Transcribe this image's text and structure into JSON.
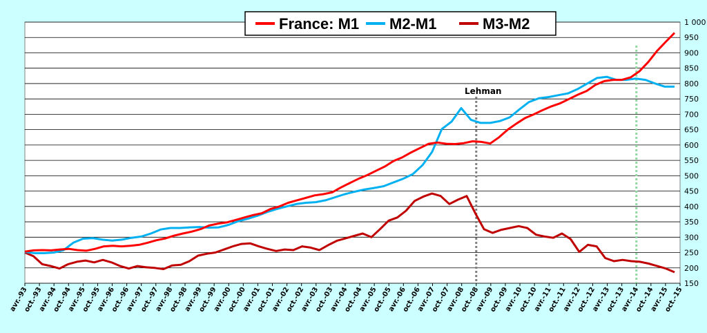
{
  "chart_data": {
    "type": "line",
    "title": "",
    "xlabel": "",
    "ylabel": "",
    "ylim": [
      150,
      1000
    ],
    "y_ticks": [
      150,
      200,
      250,
      300,
      350,
      400,
      450,
      500,
      550,
      600,
      650,
      700,
      750,
      800,
      850,
      900,
      950,
      1000
    ],
    "y_tick_labels": [
      "150",
      "200",
      "250",
      "300",
      "350",
      "400",
      "450",
      "500",
      "550",
      "600",
      "650",
      "700",
      "750",
      "800",
      "850",
      "900",
      "950",
      "1 000"
    ],
    "grid": true,
    "legend_position": "top-center",
    "x_start": "avr.-93",
    "x_end": "oct.-15",
    "x_tick_labels": [
      "avr.-93",
      "oct.-93",
      "avr.-94",
      "oct.-94",
      "avr.-95",
      "oct.-95",
      "avr.-96",
      "oct.-96",
      "avr.-97",
      "oct.-97",
      "avr.-98",
      "oct.-98",
      "avr.-99",
      "oct.-99",
      "avr.-00",
      "oct.-00",
      "avr.-01",
      "oct.-01",
      "avr.-02",
      "oct.-02",
      "avr.-03",
      "oct.-03",
      "avr.-04",
      "oct.-04",
      "avr.-05",
      "oct.-05",
      "avr.-06",
      "oct.-06",
      "avr.-07",
      "oct.-07",
      "avr.-08",
      "oct.-08",
      "avr.-09",
      "oct.-09",
      "avr.-10",
      "oct.-10",
      "avr.-11",
      "oct.-11",
      "avr.-12",
      "oct.-12",
      "avr.-13",
      "oct.-13",
      "avr.-14",
      "oct.-14",
      "avr.-15",
      "oct.-15"
    ],
    "series": [
      {
        "name": "France: M1",
        "color": "#ff0000",
        "values": [
          253,
          257,
          258,
          257,
          260,
          262,
          258,
          256,
          262,
          270,
          272,
          270,
          272,
          275,
          282,
          290,
          296,
          305,
          312,
          318,
          326,
          338,
          344,
          348,
          356,
          364,
          372,
          378,
          392,
          400,
          412,
          420,
          428,
          436,
          440,
          446,
          462,
          476,
          490,
          502,
          516,
          530,
          548,
          560,
          576,
          590,
          604,
          608,
          604,
          603,
          606,
          612,
          610,
          605,
          625,
          650,
          670,
          688,
          700,
          714,
          726,
          736,
          750,
          764,
          776,
          796,
          808,
          812,
          812,
          820,
          840,
          870,
          906,
          936,
          965
        ]
      },
      {
        "name": "M2-M1",
        "color": "#00b0f0",
        "values": [
          252,
          248,
          248,
          250,
          258,
          282,
          295,
          297,
          292,
          289,
          292,
          298,
          302,
          312,
          325,
          330,
          330,
          332,
          333,
          331,
          332,
          340,
          352,
          360,
          370,
          382,
          392,
          400,
          408,
          412,
          414,
          420,
          430,
          440,
          448,
          455,
          460,
          466,
          478,
          490,
          505,
          534,
          578,
          652,
          676,
          720,
          682,
          672,
          672,
          678,
          690,
          716,
          740,
          752,
          756,
          762,
          768,
          782,
          800,
          818,
          822,
          812,
          812,
          816,
          812,
          800,
          790,
          790
        ]
      },
      {
        "name": "M3-M2",
        "color": "#c00000",
        "values": [
          250,
          238,
          212,
          206,
          198,
          212,
          220,
          224,
          218,
          226,
          218,
          206,
          198,
          206,
          202,
          200,
          196,
          208,
          210,
          222,
          240,
          246,
          250,
          260,
          270,
          278,
          280,
          270,
          262,
          255,
          260,
          258,
          270,
          266,
          258,
          274,
          288,
          296,
          304,
          312,
          300,
          326,
          354,
          364,
          386,
          418,
          432,
          442,
          434,
          408,
          422,
          434,
          378,
          326,
          314,
          324,
          330,
          336,
          330,
          308,
          302,
          298,
          312,
          294,
          252,
          275,
          270,
          232,
          222,
          226,
          222,
          220,
          214,
          206,
          198,
          186
        ]
      }
    ],
    "annotations": [
      {
        "text": "Lehman",
        "x": "oct.-08",
        "line_color": "#808080"
      },
      {
        "text": "",
        "x": "avr.-14",
        "line_color": "#90d8a0"
      }
    ]
  }
}
